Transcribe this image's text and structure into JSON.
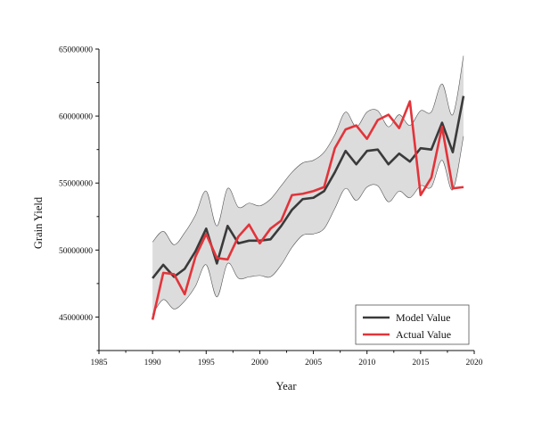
{
  "chart_data": {
    "type": "line",
    "title": "",
    "xlabel": "Year",
    "ylabel": "Grain Yield",
    "xlim": [
      1985,
      2020
    ],
    "ylim": [
      42500000,
      65000000
    ],
    "x_ticks": [
      1985,
      1990,
      1995,
      2000,
      2005,
      2010,
      2015,
      2020
    ],
    "y_ticks": [
      45000000,
      50000000,
      55000000,
      60000000,
      65000000
    ],
    "x_tick_labels": [
      "1985",
      "1990",
      "1995",
      "2000",
      "2005",
      "2010",
      "2015",
      "2020"
    ],
    "y_tick_labels": [
      "45000000",
      "50000000",
      "55000000",
      "60000000",
      "65000000"
    ],
    "x": [
      1990,
      1991,
      1992,
      1993,
      1994,
      1995,
      1996,
      1997,
      1998,
      1999,
      2000,
      2001,
      2002,
      2003,
      2004,
      2005,
      2006,
      2007,
      2008,
      2009,
      2010,
      2011,
      2012,
      2013,
      2014,
      2015,
      2016,
      2017,
      2018,
      2019
    ],
    "series": [
      {
        "name": "Model Value",
        "color": "#3a3a3a",
        "values": [
          47900000,
          48900000,
          48000000,
          48600000,
          49900000,
          51600000,
          49000000,
          51800000,
          50500000,
          50700000,
          50700000,
          50800000,
          51800000,
          53000000,
          53800000,
          53900000,
          54400000,
          55800000,
          57400000,
          56400000,
          57400000,
          57500000,
          56400000,
          57200000,
          56600000,
          57600000,
          57500000,
          59500000,
          57300000,
          61500000
        ]
      },
      {
        "name": "Actual Value",
        "color": "#e2343a",
        "values": [
          44800000,
          48300000,
          48200000,
          46700000,
          49500000,
          51200000,
          49400000,
          49300000,
          51000000,
          51900000,
          50500000,
          51600000,
          52200000,
          54100000,
          54200000,
          54400000,
          54700000,
          57600000,
          59000000,
          59300000,
          58300000,
          59700000,
          60100000,
          59100000,
          61100000,
          54100000,
          55400000,
          59200000,
          54600000,
          54700000
        ]
      }
    ],
    "band": {
      "color": "#dcdcdc",
      "upper": [
        50600000,
        51400000,
        50400000,
        51300000,
        52600000,
        54400000,
        51800000,
        54600000,
        53200000,
        53500000,
        53300000,
        53800000,
        54800000,
        55800000,
        56500000,
        56700000,
        57300000,
        58600000,
        60300000,
        59200000,
        60300000,
        60400000,
        59200000,
        60100000,
        59300000,
        60400000,
        60300000,
        62400000,
        60100000,
        64500000
      ],
      "lower": [
        45200000,
        46300000,
        45600000,
        46200000,
        47300000,
        48900000,
        46500000,
        49000000,
        47900000,
        48000000,
        48100000,
        48000000,
        48900000,
        50200000,
        51100000,
        51200000,
        51600000,
        53100000,
        54600000,
        53700000,
        54700000,
        54800000,
        53600000,
        54400000,
        53900000,
        54800000,
        54700000,
        56700000,
        54500000,
        58500000
      ]
    },
    "legend_position": "bottom-right",
    "grid": false
  }
}
